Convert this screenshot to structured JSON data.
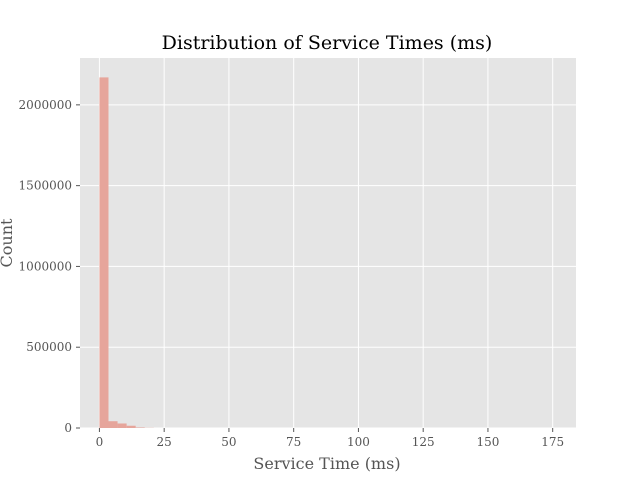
{
  "chart_data": {
    "type": "bar",
    "title": "Distribution of Service Times (ms)",
    "xlabel": "Service Time (ms)",
    "ylabel": "Count",
    "xlim": [
      -7.5,
      184
    ],
    "ylim": [
      0,
      2290000
    ],
    "xticks": [
      0,
      25,
      50,
      75,
      100,
      125,
      150,
      175
    ],
    "yticks": [
      0,
      500000,
      1000000,
      1500000,
      2000000
    ],
    "grid": true,
    "bin_width": 3.5,
    "bins": [
      {
        "x0": 0.0,
        "count": 2170000
      },
      {
        "x0": 3.5,
        "count": 42000
      },
      {
        "x0": 7.0,
        "count": 28000
      },
      {
        "x0": 10.5,
        "count": 14000
      },
      {
        "x0": 14.0,
        "count": 3000
      },
      {
        "x0": 17.5,
        "count": 1000
      }
    ],
    "colors": {
      "bar": "#e6a59b",
      "plot_background": "#e5e5e5",
      "grid": "#ffffff"
    }
  }
}
